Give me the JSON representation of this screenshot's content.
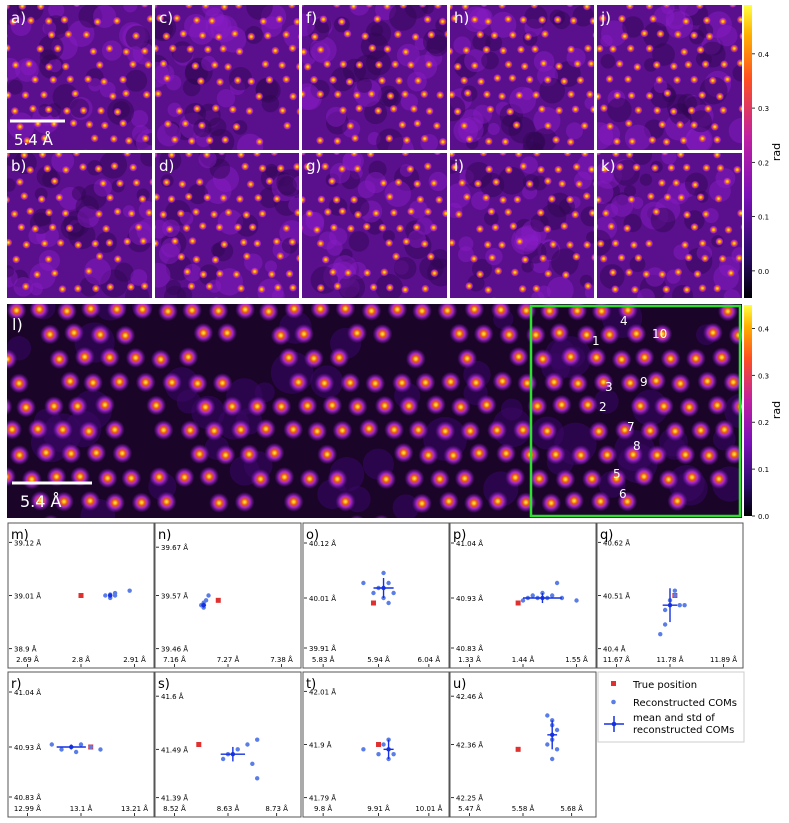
{
  "colors": {
    "bg_dark": "#1b0530",
    "bg_mid": "#6c14a8",
    "glow": "#b23be0",
    "atom_core": "#ff8c1a",
    "atom_center": "#ffe040",
    "true_marker": "#e03030",
    "com_marker": "#5a7de8",
    "mean_marker": "#1530e0",
    "roi_box": "#2ee02e"
  },
  "top_panels": [
    {
      "label": "a)"
    },
    {
      "label": "c)"
    },
    {
      "label": "f)"
    },
    {
      "label": "h)"
    },
    {
      "label": "j)"
    },
    {
      "label": "b)"
    },
    {
      "label": "d)"
    },
    {
      "label": "g)"
    },
    {
      "label": "i)"
    },
    {
      "label": "k)"
    }
  ],
  "scalebar_top": "5.4 Å",
  "colorbar_top": {
    "label": "rad",
    "ticks": [
      "0.4",
      "0.3",
      "0.2",
      "0.1",
      "0.0"
    ],
    "range": [
      -0.05,
      0.49
    ]
  },
  "panel_l": {
    "label": "l)",
    "scalebar": "5.4 Å",
    "atom_labels": [
      "1",
      "2",
      "3",
      "4",
      "5",
      "6",
      "7",
      "8",
      "9",
      "10"
    ]
  },
  "colorbar_l": {
    "label": "rad",
    "ticks": [
      "0.4",
      "0.3",
      "0.2",
      "0.1",
      "0.0"
    ],
    "range": [
      0.0,
      0.45
    ]
  },
  "chart_data": [
    {
      "type": "scatter",
      "label": "m)",
      "xticks": [
        "2.69 Å",
        "2.8 Å",
        "2.91 Å"
      ],
      "yticks": [
        "39.12 Å",
        "39.01 Å",
        "38.9 Å"
      ],
      "xlim": [
        2.65,
        2.95
      ],
      "ylim": [
        38.86,
        39.16
      ],
      "true": [
        2.8,
        39.01
      ],
      "mean": [
        2.86,
        39.01
      ],
      "std": [
        0.003,
        0.003
      ],
      "coms": [
        [
          2.86,
          39.01
        ],
        [
          2.87,
          39.015
        ],
        [
          2.86,
          39.005
        ],
        [
          2.85,
          39.01
        ],
        [
          2.87,
          39.01
        ],
        [
          2.86,
          39.012
        ],
        [
          2.9,
          39.02
        ]
      ]
    },
    {
      "type": "scatter",
      "label": "n)",
      "xticks": [
        "7.16 Å",
        "7.27 Å",
        "7.38 Å"
      ],
      "yticks": [
        "39.67 Å",
        "39.57 Å",
        "39.46 Å"
      ],
      "xlim": [
        7.12,
        7.42
      ],
      "ylim": [
        39.42,
        39.72
      ],
      "true": [
        7.25,
        39.56
      ],
      "mean": [
        7.22,
        39.55
      ],
      "std": [
        0.005,
        0.005
      ],
      "coms": [
        [
          7.22,
          39.55
        ],
        [
          7.225,
          39.56
        ],
        [
          7.22,
          39.545
        ],
        [
          7.215,
          39.55
        ],
        [
          7.23,
          39.57
        ],
        [
          7.22,
          39.555
        ]
      ]
    },
    {
      "type": "scatter",
      "label": "o)",
      "xticks": [
        "5.83 Å",
        "5.94 Å",
        "6.04 Å"
      ],
      "yticks": [
        "40.12 Å",
        "40.01 Å",
        "39.91 Å"
      ],
      "xlim": [
        5.79,
        6.08
      ],
      "ylim": [
        39.87,
        40.16
      ],
      "true": [
        5.93,
        40.0
      ],
      "mean": [
        5.95,
        40.03
      ],
      "std": [
        0.02,
        0.02
      ],
      "coms": [
        [
          5.91,
          40.04
        ],
        [
          5.95,
          40.06
        ],
        [
          5.97,
          40.02
        ],
        [
          5.96,
          40.0
        ],
        [
          5.94,
          40.03
        ],
        [
          5.93,
          40.02
        ],
        [
          5.95,
          40.01
        ],
        [
          5.96,
          40.04
        ]
      ]
    },
    {
      "type": "scatter",
      "label": "p)",
      "xticks": [
        "1.33 Å",
        "1.44 Å",
        "1.55 Å"
      ],
      "yticks": [
        "41.04 Å",
        "40.93 Å",
        "40.83 Å"
      ],
      "xlim": [
        1.29,
        1.59
      ],
      "ylim": [
        40.79,
        41.08
      ],
      "true": [
        1.43,
        40.92
      ],
      "mean": [
        1.48,
        40.93
      ],
      "std": [
        0.04,
        0.01
      ],
      "coms": [
        [
          1.44,
          40.925
        ],
        [
          1.46,
          40.935
        ],
        [
          1.48,
          40.94
        ],
        [
          1.5,
          40.935
        ],
        [
          1.52,
          40.93
        ],
        [
          1.47,
          40.93
        ],
        [
          1.49,
          40.93
        ],
        [
          1.51,
          40.96
        ],
        [
          1.55,
          40.925
        ],
        [
          1.45,
          40.93
        ]
      ]
    },
    {
      "type": "scatter",
      "label": "q)",
      "xticks": [
        "11.67 Å",
        "11.78 Å",
        "11.89 Å"
      ],
      "yticks": [
        "40.62 Å",
        "40.51 Å",
        "40.4 Å"
      ],
      "xlim": [
        11.63,
        11.93
      ],
      "ylim": [
        40.36,
        40.66
      ],
      "true": [
        11.79,
        40.51
      ],
      "mean": [
        11.78,
        40.49
      ],
      "std": [
        0.015,
        0.035
      ],
      "coms": [
        [
          11.78,
          40.5
        ],
        [
          11.79,
          40.52
        ],
        [
          11.8,
          40.49
        ],
        [
          11.77,
          40.48
        ],
        [
          11.76,
          40.43
        ],
        [
          11.77,
          40.45
        ],
        [
          11.81,
          40.49
        ],
        [
          11.79,
          40.51
        ]
      ]
    },
    {
      "type": "scatter",
      "label": "r)",
      "xticks": [
        "12.99 Å",
        "13.1 Å",
        "13.21 Å"
      ],
      "yticks": [
        "41.04 Å",
        "40.93 Å",
        "40.83 Å"
      ],
      "xlim": [
        12.95,
        13.25
      ],
      "ylim": [
        40.79,
        41.08
      ],
      "true": [
        13.12,
        40.93
      ],
      "mean": [
        13.08,
        40.93
      ],
      "std": [
        0.03,
        0.005
      ],
      "coms": [
        [
          13.04,
          40.935
        ],
        [
          13.06,
          40.925
        ],
        [
          13.08,
          40.93
        ],
        [
          13.1,
          40.935
        ],
        [
          13.12,
          40.93
        ],
        [
          13.09,
          40.92
        ],
        [
          13.14,
          40.925
        ]
      ]
    },
    {
      "type": "scatter",
      "label": "s)",
      "xticks": [
        "8.52 Å",
        "8.63 Å",
        "8.73 Å"
      ],
      "yticks": [
        "41.6 Å",
        "41.49 Å",
        "41.39 Å"
      ],
      "xlim": [
        8.48,
        8.78
      ],
      "ylim": [
        41.35,
        41.65
      ],
      "true": [
        8.57,
        41.5
      ],
      "mean": [
        8.64,
        41.48
      ],
      "std": [
        0.025,
        0.015
      ],
      "coms": [
        [
          8.62,
          41.47
        ],
        [
          8.65,
          41.49
        ],
        [
          8.67,
          41.5
        ],
        [
          8.68,
          41.46
        ],
        [
          8.69,
          41.51
        ],
        [
          8.69,
          41.43
        ],
        [
          8.63,
          41.48
        ]
      ]
    },
    {
      "type": "scatter",
      "label": "t)",
      "xticks": [
        "9.8 Å",
        "9.91 Å",
        "10.01 Å"
      ],
      "yticks": [
        "42.01 Å",
        "41.9 Å",
        "41.79 Å"
      ],
      "xlim": [
        9.76,
        10.05
      ],
      "ylim": [
        41.75,
        42.05
      ],
      "true": [
        9.91,
        41.9
      ],
      "mean": [
        9.93,
        41.89
      ],
      "std": [
        0.01,
        0.02
      ],
      "coms": [
        [
          9.91,
          41.88
        ],
        [
          9.92,
          41.9
        ],
        [
          9.93,
          41.91
        ],
        [
          9.94,
          41.88
        ],
        [
          9.93,
          41.87
        ],
        [
          9.88,
          41.89
        ]
      ]
    },
    {
      "type": "scatter",
      "label": "u)",
      "xticks": [
        "5.47 Å",
        "5.58 Å",
        "5.68 Å"
      ],
      "yticks": [
        "42.46 Å",
        "42.36 Å",
        "42.25 Å"
      ],
      "xlim": [
        5.43,
        5.73
      ],
      "ylim": [
        42.21,
        42.51
      ],
      "true": [
        5.57,
        42.35
      ],
      "mean": [
        5.64,
        42.38
      ],
      "std": [
        0.01,
        0.03
      ],
      "coms": [
        [
          5.63,
          42.42
        ],
        [
          5.64,
          42.4
        ],
        [
          5.65,
          42.39
        ],
        [
          5.64,
          42.37
        ],
        [
          5.63,
          42.36
        ],
        [
          5.65,
          42.35
        ],
        [
          5.64,
          42.33
        ],
        [
          5.64,
          42.41
        ]
      ]
    }
  ],
  "legend": {
    "items": [
      {
        "label": "True position"
      },
      {
        "label": "Reconstructed COMs"
      },
      {
        "label": "mean and std of reconstructed COMs"
      }
    ]
  }
}
